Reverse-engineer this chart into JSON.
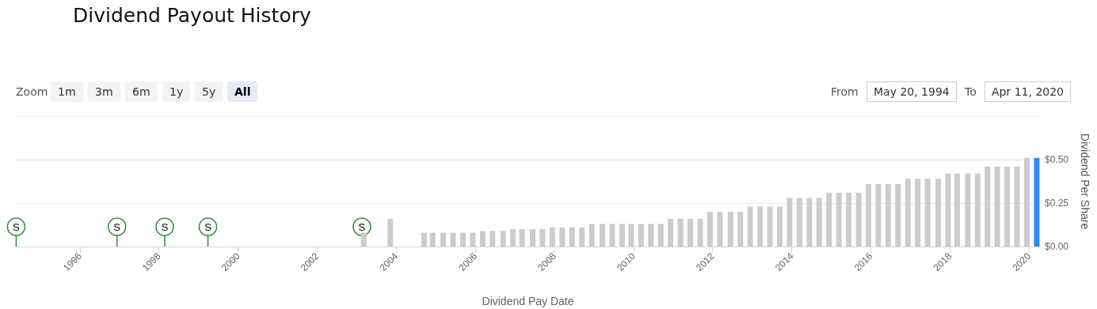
{
  "chart_data": {
    "type": "bar",
    "title": "Dividend Payout History",
    "xlabel": "Dividend Pay Date",
    "ylabel": "Dividend Per Share",
    "x": [
      "2003-03-07",
      "2003-11-07",
      "2004-09-14",
      "2004-12-02",
      "2005-03-10",
      "2005-06-09",
      "2005-09-08",
      "2005-12-08",
      "2006-03-09",
      "2006-06-08",
      "2006-09-14",
      "2006-12-14",
      "2007-03-08",
      "2007-06-14",
      "2007-09-13",
      "2007-12-13",
      "2008-03-13",
      "2008-06-12",
      "2008-09-11",
      "2008-12-11",
      "2009-03-19",
      "2009-06-18",
      "2009-09-17",
      "2009-12-10",
      "2010-03-11",
      "2010-06-10",
      "2010-09-09",
      "2010-12-09",
      "2011-03-10",
      "2011-06-09",
      "2011-09-08",
      "2011-12-08",
      "2012-03-08",
      "2012-06-14",
      "2012-09-13",
      "2012-12-13",
      "2013-03-14",
      "2013-06-13",
      "2013-09-12",
      "2013-12-12",
      "2014-03-13",
      "2014-06-12",
      "2014-09-11",
      "2014-12-11",
      "2015-03-12",
      "2015-06-11",
      "2015-09-10",
      "2015-12-10",
      "2016-03-10",
      "2016-06-09",
      "2016-09-08",
      "2016-12-08",
      "2017-03-09",
      "2017-06-08",
      "2017-09-14",
      "2017-12-14",
      "2018-03-08",
      "2018-06-14",
      "2018-09-13",
      "2018-12-13",
      "2019-03-14",
      "2019-06-13",
      "2019-09-12",
      "2019-12-12",
      "2020-03-12"
    ],
    "values": [
      0.08,
      0.16,
      0.08,
      0.08,
      0.08,
      0.08,
      0.08,
      0.08,
      0.09,
      0.09,
      0.09,
      0.1,
      0.1,
      0.1,
      0.1,
      0.11,
      0.11,
      0.11,
      0.11,
      0.13,
      0.13,
      0.13,
      0.13,
      0.13,
      0.13,
      0.13,
      0.13,
      0.16,
      0.16,
      0.16,
      0.16,
      0.2,
      0.2,
      0.2,
      0.2,
      0.23,
      0.23,
      0.23,
      0.23,
      0.28,
      0.28,
      0.28,
      0.28,
      0.31,
      0.31,
      0.31,
      0.31,
      0.36,
      0.36,
      0.36,
      0.36,
      0.39,
      0.39,
      0.39,
      0.39,
      0.42,
      0.42,
      0.42,
      0.42,
      0.46,
      0.46,
      0.46,
      0.46,
      0.51,
      0.51
    ],
    "colors": [
      "#cccccc",
      "#cccccc",
      "#cccccc",
      "#cccccc",
      "#cccccc",
      "#cccccc",
      "#cccccc",
      "#cccccc",
      "#cccccc",
      "#cccccc",
      "#cccccc",
      "#cccccc",
      "#cccccc",
      "#cccccc",
      "#cccccc",
      "#cccccc",
      "#cccccc",
      "#cccccc",
      "#cccccc",
      "#cccccc",
      "#cccccc",
      "#cccccc",
      "#cccccc",
      "#cccccc",
      "#cccccc",
      "#cccccc",
      "#cccccc",
      "#cccccc",
      "#cccccc",
      "#cccccc",
      "#cccccc",
      "#cccccc",
      "#cccccc",
      "#cccccc",
      "#cccccc",
      "#cccccc",
      "#cccccc",
      "#cccccc",
      "#cccccc",
      "#cccccc",
      "#cccccc",
      "#cccccc",
      "#cccccc",
      "#cccccc",
      "#cccccc",
      "#cccccc",
      "#cccccc",
      "#cccccc",
      "#cccccc",
      "#cccccc",
      "#cccccc",
      "#cccccc",
      "#cccccc",
      "#cccccc",
      "#cccccc",
      "#cccccc",
      "#cccccc",
      "#cccccc",
      "#cccccc",
      "#cccccc",
      "#cccccc",
      "#cccccc",
      "#cccccc",
      "#cccccc",
      "#2b8ff0"
    ],
    "xlim": [
      "1994-05-20",
      "2020-04-11"
    ],
    "xticks": [
      "1996",
      "1998",
      "2000",
      "2002",
      "2004",
      "2006",
      "2008",
      "2010",
      "2012",
      "2014",
      "2016",
      "2018",
      "2020"
    ],
    "ylim": [
      0,
      0.75
    ],
    "yticks": [
      {
        "value": 0,
        "label": "$0.00"
      },
      {
        "value": 0.25,
        "label": "$0.25"
      },
      {
        "value": 0.5,
        "label": "$0.50"
      },
      {
        "value": 0.75,
        "label": null
      }
    ],
    "grid": "y",
    "annotations": [
      "Zoom",
      "1m",
      "3m",
      "6m",
      "1y",
      "5y",
      "All",
      "From",
      "May 20, 1994",
      "To",
      "Apr 11, 2020",
      {
        "text": "S",
        "x": "1994-05-23"
      },
      {
        "text": "S",
        "x": "1996-12-09"
      },
      {
        "text": "S",
        "x": "1998-02-23"
      },
      {
        "text": "S",
        "x": "1999-03-29"
      },
      {
        "text": "S",
        "x": "2003-02-18"
      }
    ]
  }
}
